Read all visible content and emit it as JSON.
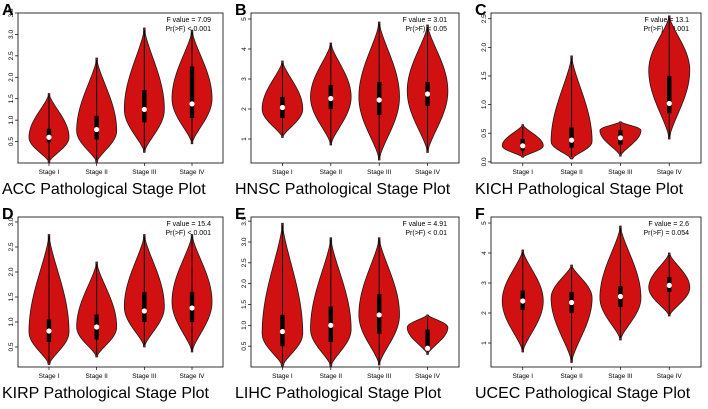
{
  "figure_colors": {
    "violin_fill": "#d11111",
    "violin_stroke": "#1a1a1a",
    "box": "#000000",
    "median": "#ffffff",
    "frame": "#000000"
  },
  "chart_data": [
    {
      "label": "A",
      "type": "violin",
      "title": "ACC Pathological Stage Plot",
      "stat_f": "F value = 7.09",
      "stat_p": "Pr(>F) < 0.001",
      "categories": [
        "Stage I",
        "Stage II",
        "Stage III",
        "Stage IV"
      ],
      "ylim": [
        0,
        3.5
      ],
      "yticks": [
        0.5,
        1.0,
        1.5,
        2.0,
        2.5,
        3.0,
        3.5
      ],
      "series": [
        {
          "min": 0.02,
          "max": 1.62,
          "q1": 0.48,
          "q3": 0.8,
          "median": 0.6,
          "peak": 0.6
        },
        {
          "min": 0.02,
          "max": 2.45,
          "q1": 0.55,
          "q3": 1.1,
          "median": 0.78,
          "peak": 0.75
        },
        {
          "min": 0.25,
          "max": 3.15,
          "q1": 0.95,
          "q3": 1.7,
          "median": 1.25,
          "peak": 1.25
        },
        {
          "min": 0.45,
          "max": 3.1,
          "q1": 1.05,
          "q3": 2.25,
          "median": 1.38,
          "peak": 1.5
        }
      ]
    },
    {
      "label": "B",
      "type": "violin",
      "title": "HNSC Pathological Stage Plot",
      "stat_f": "F value = 3.01",
      "stat_p": "Pr(>F) < 0.05",
      "categories": [
        "Stage I",
        "Stage II",
        "Stage III",
        "Stage IV"
      ],
      "ylim": [
        0.2,
        5.2
      ],
      "yticks": [
        1,
        2,
        3,
        4,
        5
      ],
      "series": [
        {
          "min": 1.05,
          "max": 3.6,
          "q1": 1.7,
          "q3": 2.4,
          "median": 2.05,
          "peak": 2.0
        },
        {
          "min": 0.8,
          "max": 4.2,
          "q1": 2.0,
          "q3": 2.8,
          "median": 2.35,
          "peak": 2.4
        },
        {
          "min": 0.3,
          "max": 4.9,
          "q1": 1.8,
          "q3": 2.9,
          "median": 2.3,
          "peak": 2.4
        },
        {
          "min": 0.55,
          "max": 4.8,
          "q1": 2.1,
          "q3": 2.9,
          "median": 2.5,
          "peak": 2.6
        }
      ]
    },
    {
      "label": "C",
      "type": "violin",
      "title": "KICH Pathological Stage Plot",
      "stat_f": "F value = 13.1",
      "stat_p": "Pr(>F) < 0.001",
      "categories": [
        "Stage I",
        "Stage II",
        "Stage III",
        "Stage IV"
      ],
      "ylim": [
        -0.02,
        2.6
      ],
      "yticks": [
        0.0,
        0.5,
        1.0,
        1.5,
        2.0,
        2.5
      ],
      "series": [
        {
          "min": 0.08,
          "max": 0.65,
          "q1": 0.2,
          "q3": 0.4,
          "median": 0.28,
          "peak": 0.28
        },
        {
          "min": 0.05,
          "max": 1.85,
          "q1": 0.25,
          "q3": 0.6,
          "median": 0.38,
          "peak": 0.35
        },
        {
          "min": 0.1,
          "max": 0.7,
          "q1": 0.3,
          "q3": 0.55,
          "median": 0.42,
          "peak": 0.55
        },
        {
          "min": 0.4,
          "max": 2.55,
          "q1": 0.85,
          "q3": 1.5,
          "median": 1.02,
          "peak": 1.6
        }
      ]
    },
    {
      "label": "D",
      "type": "violin",
      "title": "KIRP Pathological Stage Plot",
      "stat_f": "F value = 15.4",
      "stat_p": "Pr(>F) < 0.001",
      "categories": [
        "Stage I",
        "Stage II",
        "Stage III",
        "Stage IV"
      ],
      "ylim": [
        0.1,
        3.1
      ],
      "yticks": [
        0.5,
        1.0,
        1.5,
        2.0,
        2.5,
        3.0
      ],
      "series": [
        {
          "min": 0.15,
          "max": 2.75,
          "q1": 0.6,
          "q3": 1.05,
          "median": 0.82,
          "peak": 0.8
        },
        {
          "min": 0.3,
          "max": 2.2,
          "q1": 0.65,
          "q3": 1.15,
          "median": 0.9,
          "peak": 0.9
        },
        {
          "min": 0.5,
          "max": 2.75,
          "q1": 1.0,
          "q3": 1.6,
          "median": 1.22,
          "peak": 1.3
        },
        {
          "min": 0.4,
          "max": 2.75,
          "q1": 1.0,
          "q3": 1.6,
          "median": 1.28,
          "peak": 1.4
        }
      ]
    },
    {
      "label": "E",
      "type": "violin",
      "title": "LIHC Pathological Stage Plot",
      "stat_f": "F value = 4.91",
      "stat_p": "Pr(>F) < 0.01",
      "categories": [
        "Stage I",
        "Stage II",
        "Stage III",
        "Stage IV"
      ],
      "ylim": [
        0,
        3.6
      ],
      "yticks": [
        0.5,
        1.0,
        1.5,
        2.0,
        2.5,
        3.0,
        3.5
      ],
      "series": [
        {
          "min": 0.02,
          "max": 3.45,
          "q1": 0.5,
          "q3": 1.25,
          "median": 0.85,
          "peak": 0.8
        },
        {
          "min": 0.02,
          "max": 3.1,
          "q1": 0.6,
          "q3": 1.45,
          "median": 1.0,
          "peak": 0.9
        },
        {
          "min": 0.05,
          "max": 3.1,
          "q1": 0.8,
          "q3": 1.75,
          "median": 1.25,
          "peak": 1.25
        },
        {
          "min": 0.3,
          "max": 1.25,
          "q1": 0.45,
          "q3": 0.9,
          "median": 0.45,
          "peak": 0.95
        }
      ]
    },
    {
      "label": "F",
      "type": "violin",
      "title": "UCEC Pathological Stage Plot",
      "stat_f": "F value = 2.6",
      "stat_p": "Pr(>F) = 0.054",
      "categories": [
        "Stage I",
        "Stage II",
        "Stage III",
        "Stage IV"
      ],
      "ylim": [
        0.2,
        5.2
      ],
      "yticks": [
        1,
        2,
        3,
        4,
        5
      ],
      "series": [
        {
          "min": 0.7,
          "max": 4.1,
          "q1": 2.1,
          "q3": 2.75,
          "median": 2.4,
          "peak": 2.4
        },
        {
          "min": 0.35,
          "max": 3.6,
          "q1": 2.0,
          "q3": 2.7,
          "median": 2.35,
          "peak": 2.5
        },
        {
          "min": 1.1,
          "max": 4.9,
          "q1": 2.2,
          "q3": 2.9,
          "median": 2.55,
          "peak": 2.5
        },
        {
          "min": 1.9,
          "max": 4.0,
          "q1": 2.7,
          "q3": 3.2,
          "median": 2.92,
          "peak": 2.85
        }
      ]
    }
  ]
}
